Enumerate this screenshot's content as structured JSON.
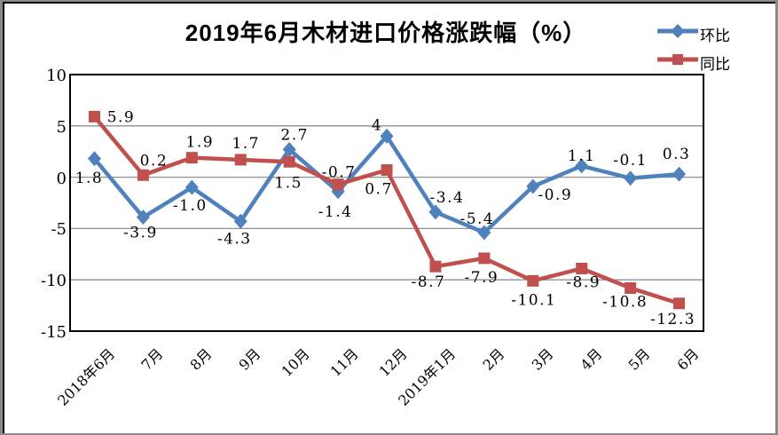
{
  "title": "2019年6月木材进口价格涨跌幅（%）",
  "legend": [
    {
      "label": "环比",
      "color": "#4F81BD",
      "marker": "diamond"
    },
    {
      "label": "同比",
      "color": "#C0504D",
      "marker": "square"
    }
  ],
  "colors": {
    "huanbi_blue": "#4F81BD",
    "tongbi_red": "#C0504D",
    "gridline": "#909090",
    "plot_border": "#000000",
    "page_frame": "#8a8a8a"
  },
  "chart_data": {
    "type": "line",
    "title": "2019年6月木材进口价格涨跌幅（%）",
    "categories": [
      "2018年6月",
      "7月",
      "8月",
      "9月",
      "10月",
      "11月",
      "12月",
      "2019年1月",
      "2月",
      "3月",
      "4月",
      "5月",
      "6月"
    ],
    "series": [
      {
        "name": "环比",
        "color": "#4F81BD",
        "marker": "diamond",
        "values": [
          1.8,
          -3.9,
          -1.0,
          -4.3,
          2.7,
          -1.4,
          4,
          -3.4,
          -5.4,
          -0.9,
          1.1,
          -0.1,
          0.3
        ],
        "labels": [
          "1.8",
          "-3.9",
          "-1.0",
          "-4.3",
          "2.7",
          "-1.4",
          "4",
          "-3.4",
          "-5.4",
          "-0.9",
          "1.1",
          "-0.1",
          "0.3"
        ]
      },
      {
        "name": "同比",
        "color": "#C0504D",
        "marker": "square",
        "values": [
          5.9,
          0.2,
          1.9,
          1.7,
          1.5,
          -0.7,
          0.7,
          -8.7,
          -7.9,
          -10.1,
          -8.9,
          -10.8,
          -12.3
        ],
        "labels": [
          "5.9",
          "0.2",
          "1.9",
          "1.7",
          "1.5",
          "-0.7",
          "0.7",
          "-8.7",
          "-7.9",
          "-10.1",
          "-8.9",
          "-10.8",
          "-12.3"
        ]
      }
    ],
    "xlabel": "",
    "ylabel": "",
    "ylim": [
      -15,
      10
    ],
    "ytick_interval": 5,
    "yticks": [
      "10",
      "5",
      "0",
      "-5",
      "-10",
      "-15"
    ],
    "grid": true,
    "legend_position": "top-right"
  }
}
